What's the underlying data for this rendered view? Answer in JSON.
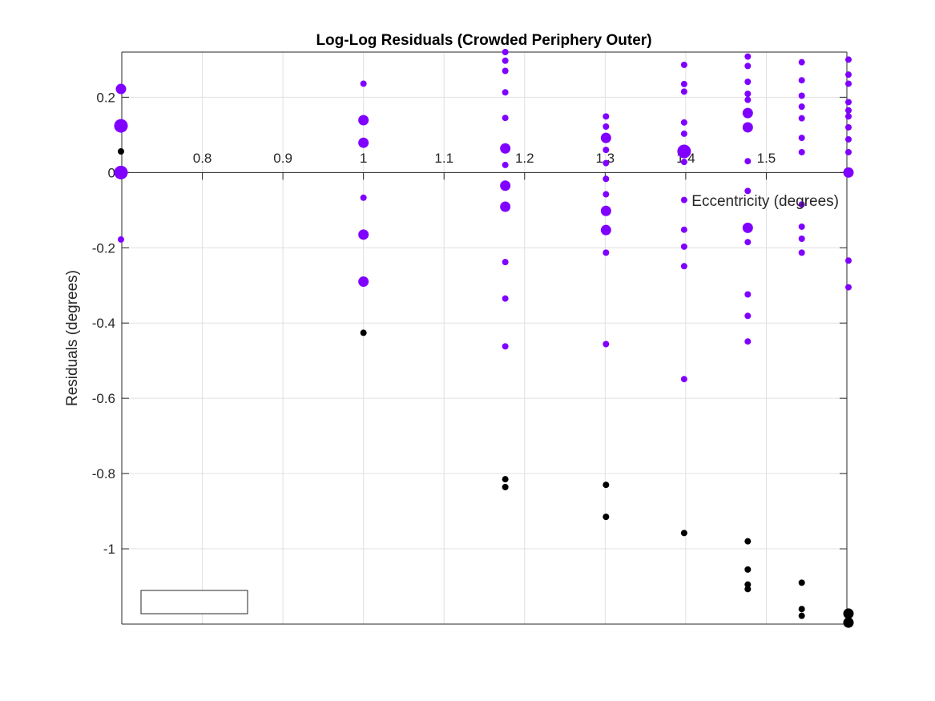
{
  "chart_data": {
    "type": "scatter",
    "title": "Log-Log Residuals (Crowded Periphery Outer)",
    "xlabel": "Eccentricity (degrees)",
    "ylabel": "Residuals (degrees)",
    "xlim": [
      0.7,
      1.6
    ],
    "ylim": [
      -1.2,
      0.32
    ],
    "xticks": [
      "0.8",
      "0.9",
      "1",
      "1.1",
      "1.2",
      "1.3",
      "1.4",
      "1.5"
    ],
    "xtick_values": [
      0.8,
      0.9,
      1.0,
      1.1,
      1.2,
      1.3,
      1.4,
      1.5
    ],
    "yticks": [
      "0.2",
      "0",
      "-0.2",
      "-0.4",
      "-0.6",
      "-0.8",
      "-1"
    ],
    "ytick_values": [
      0.2,
      0,
      -0.2,
      -0.4,
      -0.6,
      -0.8,
      -1.0
    ],
    "grid": true,
    "legend": {
      "placement": "bottom-left",
      "entries": []
    },
    "colors": {
      "purple": "#8000ff",
      "black": "#000000",
      "grid": "#e0e0e0",
      "axis": "#262626"
    },
    "series": [
      {
        "color": "purple",
        "points": [
          {
            "x": 0.699,
            "y": 0.222,
            "s": "m"
          },
          {
            "x": 0.699,
            "y": 0.124,
            "s": "l"
          },
          {
            "x": 0.699,
            "y": 0.0,
            "s": "l"
          },
          {
            "x": 0.699,
            "y": -0.178,
            "s": "s"
          },
          {
            "x": 1.0,
            "y": 0.236,
            "s": "s"
          },
          {
            "x": 1.0,
            "y": 0.139,
            "s": "m"
          },
          {
            "x": 1.0,
            "y": 0.079,
            "s": "m"
          },
          {
            "x": 1.0,
            "y": -0.067,
            "s": "s"
          },
          {
            "x": 1.0,
            "y": -0.165,
            "s": "m"
          },
          {
            "x": 1.0,
            "y": -0.29,
            "s": "m"
          },
          {
            "x": 1.176,
            "y": 0.32,
            "s": "s"
          },
          {
            "x": 1.176,
            "y": 0.297,
            "s": "s"
          },
          {
            "x": 1.176,
            "y": 0.27,
            "s": "s"
          },
          {
            "x": 1.176,
            "y": 0.213,
            "s": "s"
          },
          {
            "x": 1.176,
            "y": 0.145,
            "s": "s"
          },
          {
            "x": 1.176,
            "y": 0.064,
            "s": "m"
          },
          {
            "x": 1.176,
            "y": 0.02,
            "s": "s"
          },
          {
            "x": 1.176,
            "y": -0.035,
            "s": "m"
          },
          {
            "x": 1.176,
            "y": -0.091,
            "s": "m"
          },
          {
            "x": 1.176,
            "y": -0.238,
            "s": "s"
          },
          {
            "x": 1.176,
            "y": -0.335,
            "s": "s"
          },
          {
            "x": 1.176,
            "y": -0.462,
            "s": "s"
          },
          {
            "x": 1.301,
            "y": 0.149,
            "s": "s"
          },
          {
            "x": 1.301,
            "y": 0.122,
            "s": "s"
          },
          {
            "x": 1.301,
            "y": 0.092,
            "s": "m"
          },
          {
            "x": 1.301,
            "y": 0.06,
            "s": "s"
          },
          {
            "x": 1.301,
            "y": 0.025,
            "s": "s"
          },
          {
            "x": 1.301,
            "y": -0.017,
            "s": "s"
          },
          {
            "x": 1.301,
            "y": -0.058,
            "s": "s"
          },
          {
            "x": 1.301,
            "y": -0.102,
            "s": "m"
          },
          {
            "x": 1.301,
            "y": -0.153,
            "s": "m"
          },
          {
            "x": 1.301,
            "y": -0.213,
            "s": "s"
          },
          {
            "x": 1.301,
            "y": -0.456,
            "s": "s"
          },
          {
            "x": 1.398,
            "y": 0.286,
            "s": "s"
          },
          {
            "x": 1.398,
            "y": 0.235,
            "s": "s"
          },
          {
            "x": 1.398,
            "y": 0.215,
            "s": "s"
          },
          {
            "x": 1.398,
            "y": 0.133,
            "s": "s"
          },
          {
            "x": 1.398,
            "y": 0.103,
            "s": "s"
          },
          {
            "x": 1.398,
            "y": 0.056,
            "s": "l"
          },
          {
            "x": 1.398,
            "y": 0.028,
            "s": "s"
          },
          {
            "x": 1.398,
            "y": -0.073,
            "s": "s"
          },
          {
            "x": 1.398,
            "y": -0.152,
            "s": "s"
          },
          {
            "x": 1.398,
            "y": -0.197,
            "s": "s"
          },
          {
            "x": 1.398,
            "y": -0.249,
            "s": "s"
          },
          {
            "x": 1.398,
            "y": -0.549,
            "s": "s"
          },
          {
            "x": 1.477,
            "y": 0.308,
            "s": "s"
          },
          {
            "x": 1.477,
            "y": 0.283,
            "s": "s"
          },
          {
            "x": 1.477,
            "y": 0.241,
            "s": "s"
          },
          {
            "x": 1.477,
            "y": 0.209,
            "s": "s"
          },
          {
            "x": 1.477,
            "y": 0.193,
            "s": "s"
          },
          {
            "x": 1.477,
            "y": 0.158,
            "s": "m"
          },
          {
            "x": 1.477,
            "y": 0.12,
            "s": "m"
          },
          {
            "x": 1.477,
            "y": 0.03,
            "s": "s"
          },
          {
            "x": 1.477,
            "y": -0.049,
            "s": "s"
          },
          {
            "x": 1.477,
            "y": -0.147,
            "s": "m"
          },
          {
            "x": 1.477,
            "y": -0.185,
            "s": "s"
          },
          {
            "x": 1.477,
            "y": -0.324,
            "s": "s"
          },
          {
            "x": 1.477,
            "y": -0.381,
            "s": "s"
          },
          {
            "x": 1.477,
            "y": -0.449,
            "s": "s"
          },
          {
            "x": 1.544,
            "y": 0.293,
            "s": "s"
          },
          {
            "x": 1.544,
            "y": 0.245,
            "s": "s"
          },
          {
            "x": 1.544,
            "y": 0.204,
            "s": "s"
          },
          {
            "x": 1.544,
            "y": 0.175,
            "s": "s"
          },
          {
            "x": 1.544,
            "y": 0.144,
            "s": "s"
          },
          {
            "x": 1.544,
            "y": 0.092,
            "s": "s"
          },
          {
            "x": 1.544,
            "y": 0.054,
            "s": "s"
          },
          {
            "x": 1.544,
            "y": -0.085,
            "s": "s"
          },
          {
            "x": 1.544,
            "y": -0.144,
            "s": "s"
          },
          {
            "x": 1.544,
            "y": -0.176,
            "s": "s"
          },
          {
            "x": 1.544,
            "y": -0.213,
            "s": "s"
          },
          {
            "x": 1.602,
            "y": 0.3,
            "s": "s"
          },
          {
            "x": 1.602,
            "y": 0.26,
            "s": "s"
          },
          {
            "x": 1.602,
            "y": 0.236,
            "s": "s"
          },
          {
            "x": 1.602,
            "y": 0.187,
            "s": "s"
          },
          {
            "x": 1.602,
            "y": 0.165,
            "s": "s"
          },
          {
            "x": 1.602,
            "y": 0.149,
            "s": "s"
          },
          {
            "x": 1.602,
            "y": 0.12,
            "s": "s"
          },
          {
            "x": 1.602,
            "y": 0.088,
            "s": "s"
          },
          {
            "x": 1.602,
            "y": 0.054,
            "s": "s"
          },
          {
            "x": 1.602,
            "y": 0.0,
            "s": "m"
          },
          {
            "x": 1.602,
            "y": -0.234,
            "s": "s"
          },
          {
            "x": 1.602,
            "y": -0.305,
            "s": "s"
          }
        ]
      },
      {
        "color": "black",
        "points": [
          {
            "x": 0.699,
            "y": 0.056,
            "s": "s"
          },
          {
            "x": 1.0,
            "y": -0.426,
            "s": "s"
          },
          {
            "x": 1.176,
            "y": -0.815,
            "s": "s"
          },
          {
            "x": 1.176,
            "y": -0.836,
            "s": "s"
          },
          {
            "x": 1.301,
            "y": -0.83,
            "s": "s"
          },
          {
            "x": 1.301,
            "y": -0.915,
            "s": "s"
          },
          {
            "x": 1.398,
            "y": -0.958,
            "s": "s"
          },
          {
            "x": 1.477,
            "y": -0.98,
            "s": "s"
          },
          {
            "x": 1.477,
            "y": -1.055,
            "s": "s"
          },
          {
            "x": 1.477,
            "y": -1.095,
            "s": "s"
          },
          {
            "x": 1.477,
            "y": -1.107,
            "s": "s"
          },
          {
            "x": 1.544,
            "y": -1.09,
            "s": "s"
          },
          {
            "x": 1.544,
            "y": -1.16,
            "s": "s"
          },
          {
            "x": 1.544,
            "y": -1.178,
            "s": "s"
          },
          {
            "x": 1.602,
            "y": -1.172,
            "s": "m"
          },
          {
            "x": 1.602,
            "y": -1.196,
            "s": "m"
          }
        ]
      }
    ]
  }
}
